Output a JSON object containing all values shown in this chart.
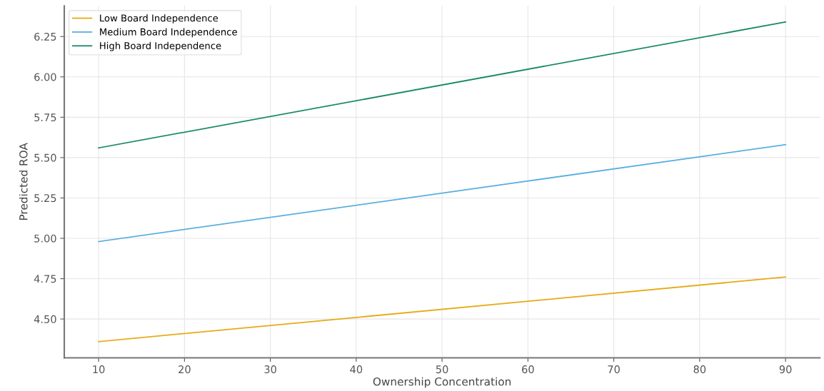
{
  "chart_data": {
    "type": "line",
    "xlabel": "Ownership Concentration",
    "ylabel": "Predicted ROA",
    "x": [
      10,
      90
    ],
    "series": [
      {
        "name": "Low Board Independence",
        "color": "#e8a915",
        "values": [
          4.36,
          4.76
        ]
      },
      {
        "name": "Medium Board Independence",
        "color": "#5aaee0",
        "values": [
          4.98,
          5.58
        ]
      },
      {
        "name": "High Board Independence",
        "color": "#1a8a66",
        "values": [
          5.56,
          6.34
        ]
      }
    ],
    "xlim": [
      6,
      94
    ],
    "xticks": [
      10,
      20,
      30,
      40,
      50,
      60,
      70,
      80,
      90
    ],
    "ylim": [
      4.26,
      6.44
    ],
    "yticks": [
      {
        "value": 4.5,
        "label": "4.50"
      },
      {
        "value": 4.75,
        "label": "4.75"
      },
      {
        "value": 5.0,
        "label": "5.00"
      },
      {
        "value": 5.25,
        "label": "5.25"
      },
      {
        "value": 5.5,
        "label": "5.50"
      },
      {
        "value": 5.75,
        "label": "5.75"
      },
      {
        "value": 6.0,
        "label": "6.00"
      },
      {
        "value": 6.25,
        "label": "6.25"
      }
    ],
    "grid": true,
    "legend": "top left",
    "line_style": "solid",
    "marker": "none"
  }
}
